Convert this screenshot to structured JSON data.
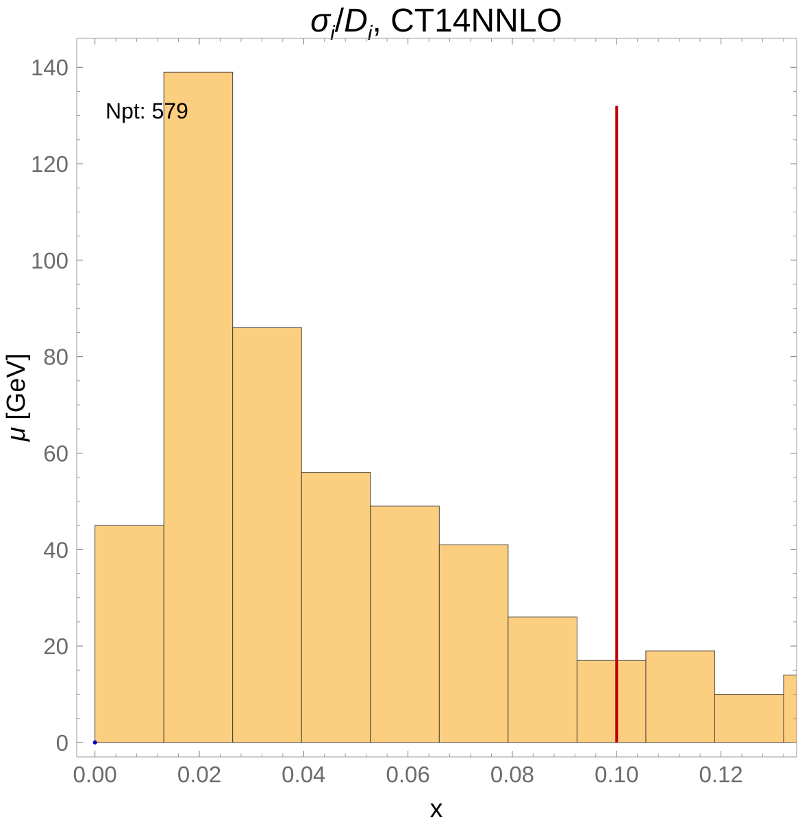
{
  "chart_data": {
    "type": "bar",
    "title_parts": {
      "sigma": "σ",
      "sub_i": "i",
      "slash": "/",
      "D": "D",
      "sub_i2": "i",
      "rest": ", CT14NNLO"
    },
    "xlabel": "x",
    "ylabel_mu": "μ",
    "ylabel_rest": " [GeV]",
    "annotation": "Npt: 579",
    "xlim": [
      -0.0035,
      0.1345
    ],
    "ylim": [
      -3,
      146
    ],
    "x_ticks": [
      {
        "value": 0.0,
        "label": "0.00"
      },
      {
        "value": 0.02,
        "label": "0.02"
      },
      {
        "value": 0.04,
        "label": "0.04"
      },
      {
        "value": 0.06,
        "label": "0.06"
      },
      {
        "value": 0.08,
        "label": "0.08"
      },
      {
        "value": 0.1,
        "label": "0.10"
      },
      {
        "value": 0.12,
        "label": "0.12"
      }
    ],
    "y_ticks": [
      {
        "value": 0,
        "label": "0"
      },
      {
        "value": 20,
        "label": "20"
      },
      {
        "value": 40,
        "label": "40"
      },
      {
        "value": 60,
        "label": "60"
      },
      {
        "value": 80,
        "label": "80"
      },
      {
        "value": 100,
        "label": "100"
      },
      {
        "value": 120,
        "label": "120"
      },
      {
        "value": 140,
        "label": "140"
      }
    ],
    "bins": [
      {
        "x0": 0.0,
        "x1": 0.0132,
        "value": 45
      },
      {
        "x0": 0.0132,
        "x1": 0.0264,
        "value": 139
      },
      {
        "x0": 0.0264,
        "x1": 0.0396,
        "value": 86
      },
      {
        "x0": 0.0396,
        "x1": 0.0528,
        "value": 56
      },
      {
        "x0": 0.0528,
        "x1": 0.066,
        "value": 49
      },
      {
        "x0": 0.066,
        "x1": 0.0792,
        "value": 41
      },
      {
        "x0": 0.0792,
        "x1": 0.0924,
        "value": 26
      },
      {
        "x0": 0.0924,
        "x1": 0.1056,
        "value": 17
      },
      {
        "x0": 0.1056,
        "x1": 0.1188,
        "value": 19
      },
      {
        "x0": 0.1188,
        "x1": 0.132,
        "value": 10
      },
      {
        "x0": 0.132,
        "x1": 0.1452,
        "value": 14
      }
    ],
    "reference_line": {
      "x": 0.1,
      "y0": 0,
      "y1": 132,
      "color": "#c00000"
    },
    "marker_point": {
      "x": 0.0,
      "y": 0,
      "color": "#0000cc"
    },
    "bar_fill": "#fcce80",
    "bar_stroke": "#333333",
    "grid": false
  }
}
